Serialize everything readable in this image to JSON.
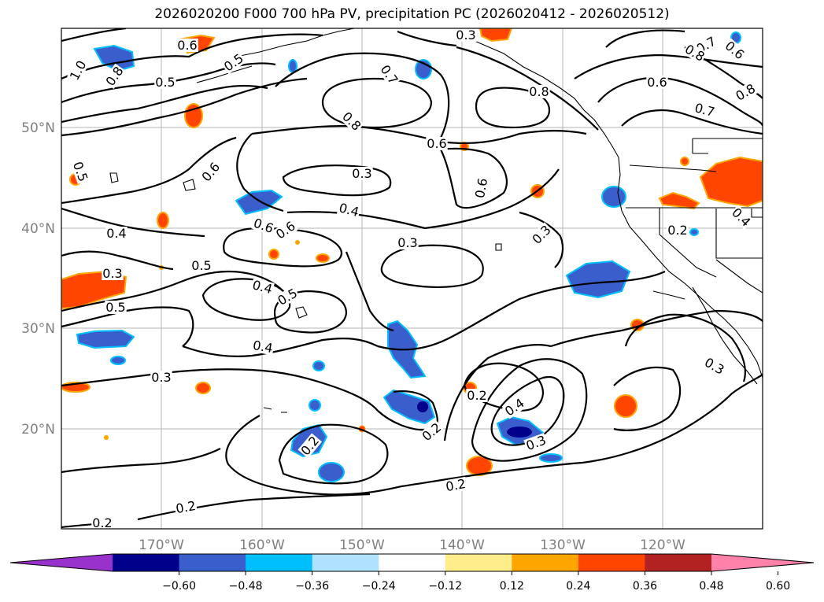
{
  "title": "2026020200 F000 700 hPa PV, precipitation PC (2026020412 - 2026020512)",
  "longitude_labels": [
    "170°W",
    "160°W",
    "150°W",
    "140°W",
    "130°W",
    "120°W"
  ],
  "latitude_labels": [
    "50°N",
    "40°N",
    "30°N",
    "20°N"
  ],
  "contour_labels": [
    "1.0",
    "0.8",
    "0.6",
    "0.5",
    "0.5",
    "0.3",
    "0.7",
    "0.8",
    "0.8",
    "0.6",
    "0.6",
    "0.6",
    "0.6",
    "0.7",
    "0.7",
    "0.8",
    "0.8",
    "0.5",
    "0.6",
    "0.3",
    "0.4",
    "0.4",
    "0.6",
    "0.6",
    "0.3",
    "0.3",
    "0.3",
    "0.5",
    "0.5",
    "0.4",
    "0.5",
    "0.4",
    "0.3",
    "0.2",
    "0.2",
    "0.4",
    "0.3",
    "0.2",
    "0.2",
    "0.2",
    "0.2",
    "0.3",
    "0.2",
    "0.4"
  ],
  "colorbar": {
    "ticks": [
      "−0.60",
      "−0.48",
      "−0.36",
      "−0.24",
      "−0.12",
      "0.12",
      "0.24",
      "0.36",
      "0.48",
      "0.60"
    ],
    "colors": [
      "#9932cc",
      "#00008b",
      "#3a5fcd",
      "#00bfff",
      "#b0e2ff",
      "#ffffff",
      "#ffec8b",
      "#ffa500",
      "#ff4500",
      "#b22222",
      "#ff82ab"
    ]
  }
}
